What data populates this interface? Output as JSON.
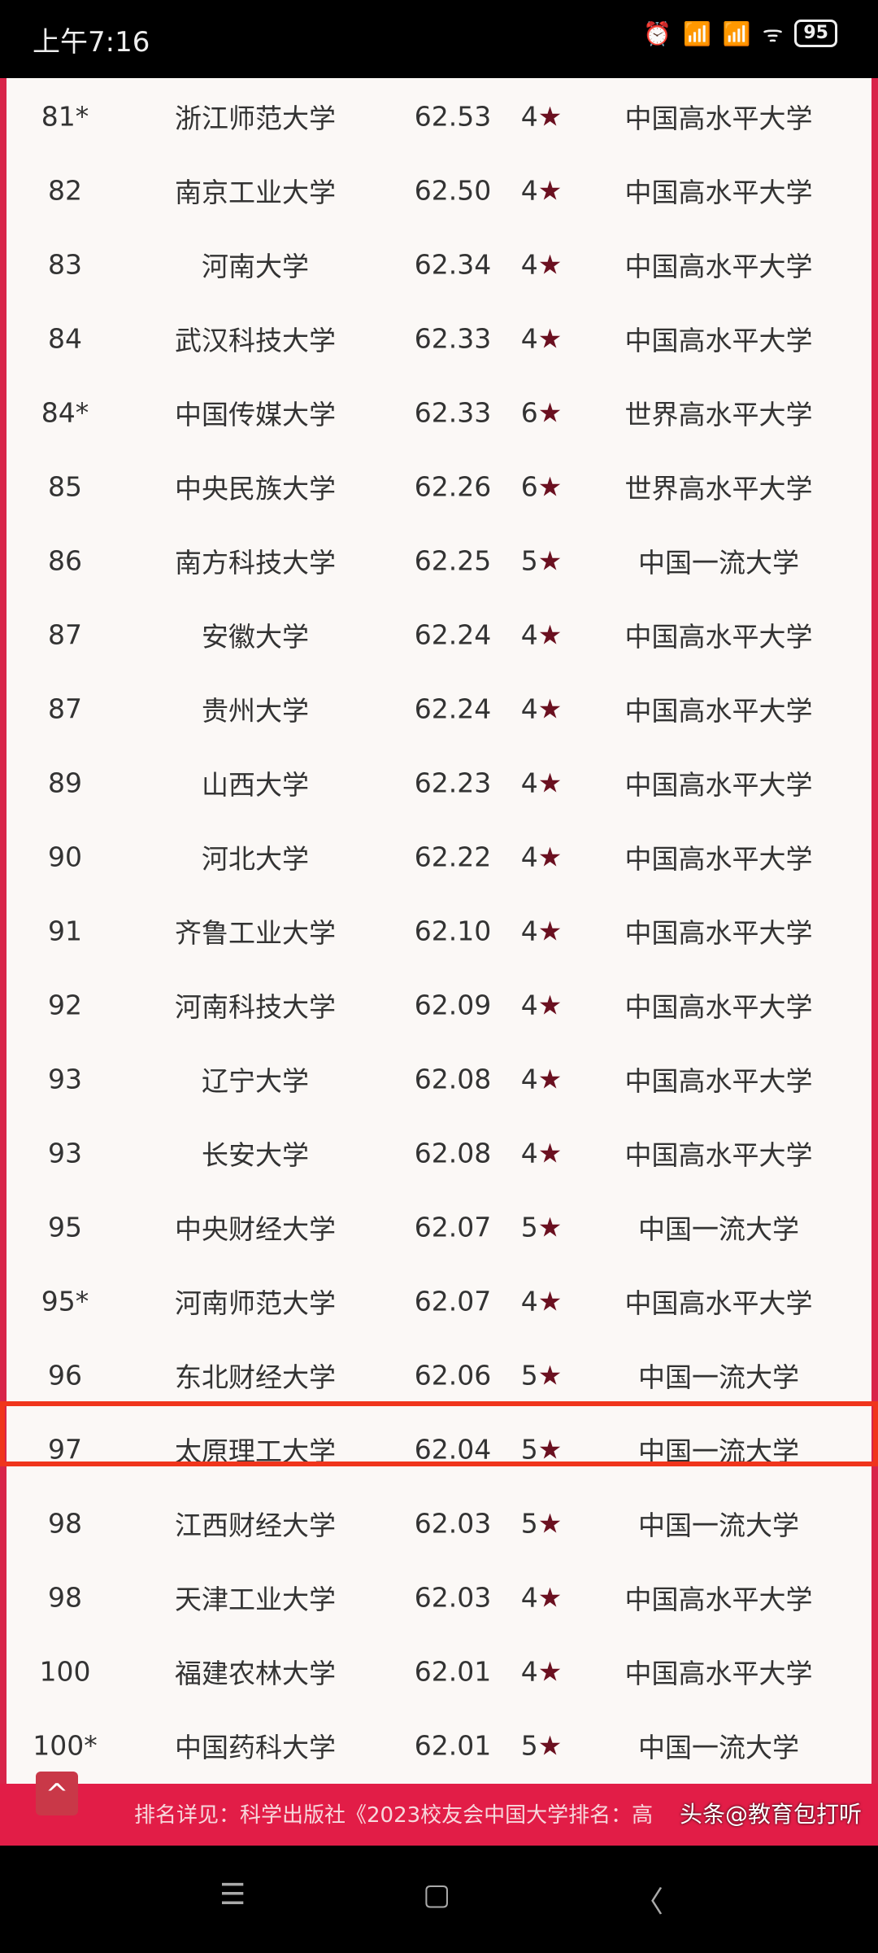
{
  "status_bar": {
    "time": "上午7:16",
    "battery": "95",
    "icons": [
      "alarm-icon",
      "hd-signal-icon",
      "signal-icon",
      "wifi-icon",
      "battery-icon"
    ]
  },
  "rows": [
    [
      "81*",
      "浙江师范大学",
      "62.53",
      "4★",
      "中国高水平大学"
    ],
    [
      "82",
      "南京工业大学",
      "62.50",
      "4★",
      "中国高水平大学"
    ],
    [
      "83",
      "河南大学",
      "62.34",
      "4★",
      "中国高水平大学"
    ],
    [
      "84",
      "武汉科技大学",
      "62.33",
      "4★",
      "中国高水平大学"
    ],
    [
      "84*",
      "中国传媒大学",
      "62.33",
      "6★",
      "世界高水平大学"
    ],
    [
      "85",
      "中央民族大学",
      "62.26",
      "6★",
      "世界高水平大学"
    ],
    [
      "86",
      "南方科技大学",
      "62.25",
      "5★",
      "中国一流大学"
    ],
    [
      "87",
      "安徽大学",
      "62.24",
      "4★",
      "中国高水平大学"
    ],
    [
      "87",
      "贵州大学",
      "62.24",
      "4★",
      "中国高水平大学"
    ],
    [
      "89",
      "山西大学",
      "62.23",
      "4★",
      "中国高水平大学"
    ],
    [
      "90",
      "河北大学",
      "62.22",
      "4★",
      "中国高水平大学"
    ],
    [
      "91",
      "齐鲁工业大学",
      "62.10",
      "4★",
      "中国高水平大学"
    ],
    [
      "92",
      "河南科技大学",
      "62.09",
      "4★",
      "中国高水平大学"
    ],
    [
      "93",
      "辽宁大学",
      "62.08",
      "4★",
      "中国高水平大学"
    ],
    [
      "93",
      "长安大学",
      "62.08",
      "4★",
      "中国高水平大学"
    ],
    [
      "95",
      "中央财经大学",
      "62.07",
      "5★",
      "中国一流大学"
    ],
    [
      "95*",
      "河南师范大学",
      "62.07",
      "4★",
      "中国高水平大学"
    ],
    [
      "96",
      "东北财经大学",
      "62.06",
      "5★",
      "中国一流大学"
    ],
    [
      "97",
      "太原理工大学",
      "62.04",
      "5★",
      "中国一流大学"
    ],
    [
      "98",
      "江西财经大学",
      "62.03",
      "5★",
      "中国一流大学"
    ],
    [
      "98",
      "天津工业大学",
      "62.03",
      "4★",
      "中国高水平大学"
    ],
    [
      "100",
      "福建农林大学",
      "62.01",
      "4★",
      "中国高水平大学"
    ],
    [
      "100*",
      "中国药科大学",
      "62.01",
      "5★",
      "中国一流大学"
    ]
  ],
  "highlighted_row": "江西财经大学",
  "footer": {
    "text": "排名详见：科学出版社《2023校友会中国大学排名：高",
    "watermark": "头条@教育包打听"
  },
  "colors": {
    "accent": "#e21d47",
    "highlight": "#f0351c"
  }
}
